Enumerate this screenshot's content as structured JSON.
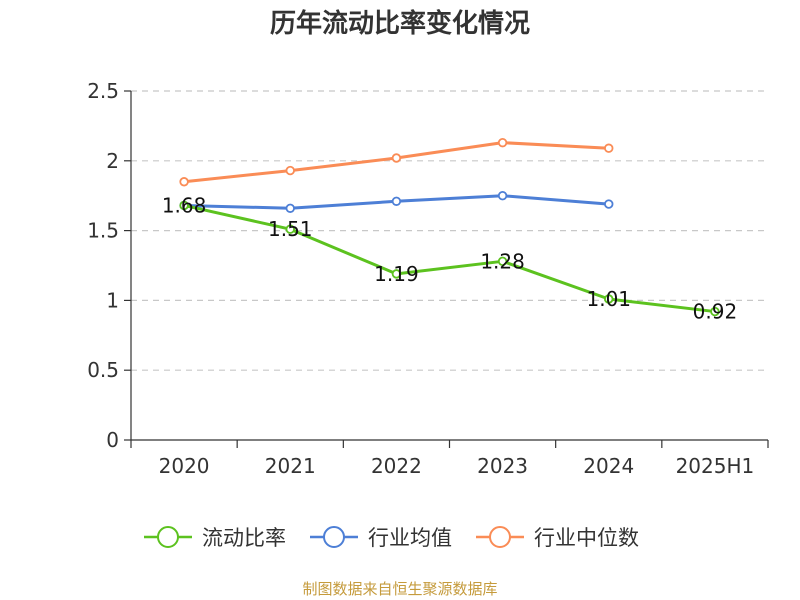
{
  "chart_data": {
    "type": "line",
    "title": "历年流动比率变化情况",
    "categories": [
      "2020",
      "2021",
      "2022",
      "2023",
      "2024",
      "2025H1"
    ],
    "yticks": [
      "0",
      "0.5",
      "1",
      "1.5",
      "2",
      "2.5"
    ],
    "ylim": [
      0,
      2.5
    ],
    "grid": true,
    "legend_position": "bottom",
    "series": [
      {
        "name": "流动比率",
        "color": "#5cc21f",
        "values": [
          1.68,
          1.51,
          1.19,
          1.28,
          1.01,
          0.92
        ],
        "labels": [
          "1.68",
          "1.51",
          "1.19",
          "1.28",
          "1.01",
          "0.92"
        ]
      },
      {
        "name": "行业均值",
        "color": "#4d7fd6",
        "values": [
          1.68,
          1.66,
          1.71,
          1.75,
          1.69,
          null
        ]
      },
      {
        "name": "行业中位数",
        "color": "#fa8c56",
        "values": [
          1.85,
          1.93,
          2.02,
          2.13,
          2.09,
          null
        ]
      }
    ]
  },
  "footer": {
    "source": "制图数据来自恒生聚源数据库"
  }
}
